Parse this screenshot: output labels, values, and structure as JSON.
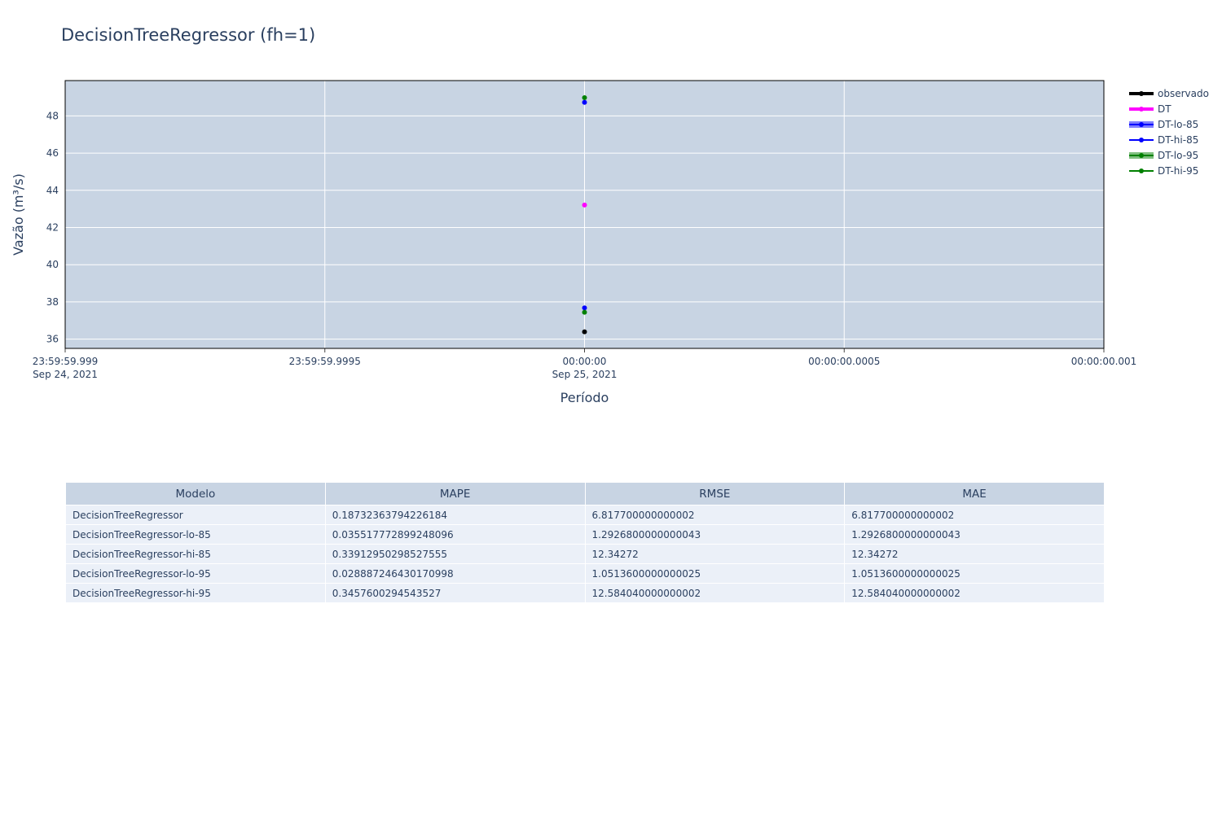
{
  "chart_data": {
    "type": "scatter",
    "title": "DecisionTreeRegressor (fh=1)",
    "xlabel": "Período",
    "ylabel": "Vazão (m³/s)",
    "x_ticks": [
      {
        "line1": "23:59:59.999",
        "line2": "Sep 24, 2021"
      },
      {
        "line1": "23:59:59.9995",
        "line2": ""
      },
      {
        "line1": "00:00:00",
        "line2": "Sep 25, 2021"
      },
      {
        "line1": "00:00:00.0005",
        "line2": ""
      },
      {
        "line1": "00:00:00.001",
        "line2": ""
      }
    ],
    "x_point": "00:00:00 Sep 25, 2021",
    "y_ticks": [
      36,
      38,
      40,
      42,
      44,
      46,
      48
    ],
    "ylim": [
      35.5,
      49.9
    ],
    "grid": true,
    "legend_position": "right",
    "series": [
      {
        "name": "observado",
        "color": "#000000",
        "value": 36.39,
        "legend_style": "thick"
      },
      {
        "name": "DT",
        "color": "#ff00ff",
        "value": 43.21,
        "legend_style": "thick"
      },
      {
        "name": "DT-lo-85",
        "color": "#0000ff",
        "value": 37.68,
        "legend_style": "fill"
      },
      {
        "name": "DT-hi-85",
        "color": "#0000ff",
        "value": 48.73,
        "legend_style": "line"
      },
      {
        "name": "DT-lo-95",
        "color": "#008000",
        "value": 37.44,
        "legend_style": "fill"
      },
      {
        "name": "DT-hi-95",
        "color": "#008000",
        "value": 48.98,
        "legend_style": "line"
      }
    ]
  },
  "table": {
    "headers": [
      "Modelo",
      "MAPE",
      "RMSE",
      "MAE"
    ],
    "rows": [
      [
        "DecisionTreeRegressor",
        "0.18732363794226184",
        "6.817700000000002",
        "6.817700000000002"
      ],
      [
        "DecisionTreeRegressor-lo-85",
        "0.035517772899248096",
        "1.2926800000000043",
        "1.2926800000000043"
      ],
      [
        "DecisionTreeRegressor-hi-85",
        "0.33912950298527555",
        "12.34272",
        "12.34272"
      ],
      [
        "DecisionTreeRegressor-lo-95",
        "0.028887246430170998",
        "1.0513600000000025",
        "1.0513600000000025"
      ],
      [
        "DecisionTreeRegressor-hi-95",
        "0.3457600294543527",
        "12.584040000000002",
        "12.584040000000002"
      ]
    ]
  },
  "colors": {
    "plot_bg": "#c8d4e3",
    "grid": "#ffffff",
    "header_bg": "#c8d4e3",
    "cell_bg": "#ebf0f8",
    "text": "#2a3f5f"
  }
}
